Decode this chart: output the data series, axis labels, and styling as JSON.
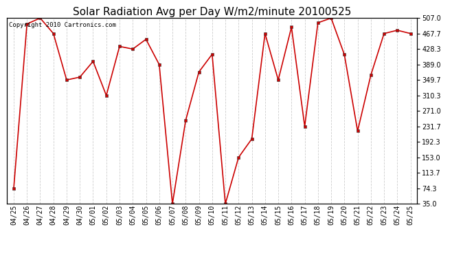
{
  "title": "Solar Radiation Avg per Day W/m2/minute 20100525",
  "copyright_text": "Copyright 2010 Cartronics.com",
  "dates": [
    "04/25",
    "04/26",
    "04/27",
    "04/28",
    "04/29",
    "04/30",
    "05/01",
    "05/02",
    "05/03",
    "05/04",
    "05/05",
    "05/06",
    "05/07",
    "05/08",
    "05/09",
    "05/10",
    "05/11",
    "05/12",
    "05/13",
    "05/14",
    "05/15",
    "05/16",
    "05/17",
    "05/18",
    "05/19",
    "05/20",
    "05/21",
    "05/22",
    "05/23",
    "05/24",
    "05/25"
  ],
  "values": [
    74.3,
    492.0,
    507.0,
    467.7,
    349.7,
    357.0,
    397.0,
    310.3,
    435.0,
    428.3,
    453.0,
    389.0,
    35.0,
    247.0,
    370.0,
    415.0,
    35.0,
    153.0,
    200.0,
    467.7,
    349.7,
    484.0,
    231.7,
    495.0,
    507.0,
    414.0,
    220.0,
    362.0,
    467.7,
    476.0,
    467.7
  ],
  "line_color": "#cc0000",
  "marker": "s",
  "marker_size": 3,
  "background_color": "#ffffff",
  "plot_bg_color": "#ffffff",
  "grid_color": "#cccccc",
  "ytick_values": [
    35.0,
    74.3,
    113.7,
    153.0,
    192.3,
    231.7,
    271.0,
    310.3,
    349.7,
    389.0,
    428.3,
    467.7,
    507.0
  ],
  "ytick_labels": [
    "35.0",
    "74.3",
    "113.7",
    "153.0",
    "192.3",
    "231.7",
    "271.0",
    "310.3",
    "349.7",
    "389.0",
    "428.3",
    "467.7",
    "507.0"
  ],
  "ylim": [
    35.0,
    507.0
  ],
  "title_fontsize": 11,
  "tick_fontsize": 7,
  "copyright_fontsize": 6.5
}
